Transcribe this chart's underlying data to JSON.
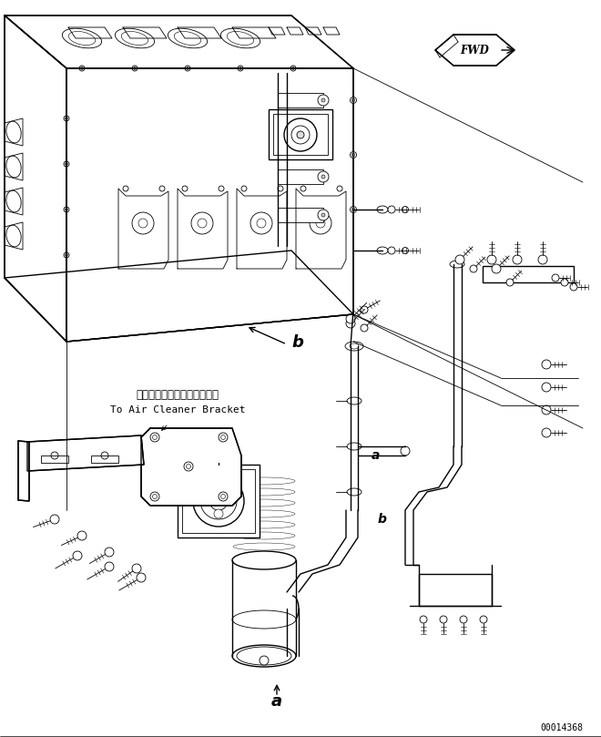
{
  "bg_color": "#ffffff",
  "line_color": "#000000",
  "fig_width": 6.6,
  "fig_height": 8.09,
  "dpi": 100,
  "part_number": "00014368",
  "label_a": "a",
  "label_b": "b",
  "fwd_text": "FWD",
  "japanese_text": "エアークリーナブラケットヘ",
  "english_text": "To Air Cleaner Bracket",
  "lw_main": 1.0,
  "lw_thin": 0.6,
  "lw_thick": 1.5
}
